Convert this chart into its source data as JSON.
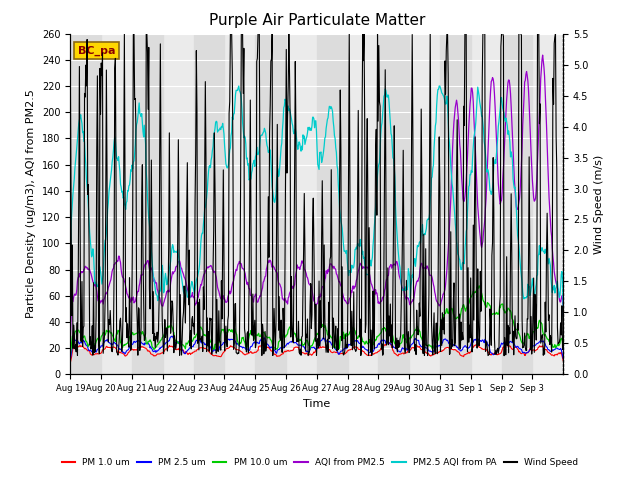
{
  "title": "Purple Air Particulate Matter",
  "xlabel": "Time",
  "ylabel_left": "Particle Density (ug/m3), AQI from PM2.5",
  "ylabel_right": "Wind Speed (m/s)",
  "annotation_text": "BC_pa",
  "annotation_color": "#8B0000",
  "annotation_bg": "#FFD700",
  "annotation_edge": "#8B6914",
  "ylim_left": [
    0,
    260
  ],
  "ylim_right": [
    0,
    5.5
  ],
  "yticks_left": [
    0,
    20,
    40,
    60,
    80,
    100,
    120,
    140,
    160,
    180,
    200,
    220,
    240,
    260
  ],
  "yticks_right": [
    0.0,
    0.5,
    1.0,
    1.5,
    2.0,
    2.5,
    3.0,
    3.5,
    4.0,
    4.5,
    5.0,
    5.5
  ],
  "xtick_labels": [
    "Aug 19",
    "Aug 20",
    "Aug 21",
    "Aug 22",
    "Aug 23",
    "Aug 24",
    "Aug 25",
    "Aug 26",
    "Aug 27",
    "Aug 28",
    "Aug 29",
    "Aug 30",
    "Aug 31",
    "Sep 1",
    "Sep 2",
    "Sep 3"
  ],
  "line_colors": {
    "pm10": "#FF0000",
    "pm25": "#0000FF",
    "pm100": "#00CC00",
    "aqi_pm25": "#9900CC",
    "aqi_pa": "#00CCCC",
    "wind": "#000000"
  },
  "legend_labels": [
    "PM 1.0 um",
    "PM 2.5 um",
    "PM 10.0 um",
    "AQI from PM2.5",
    "PM2.5 AQI from PA",
    "Wind Speed"
  ],
  "bg_band_light": "#EBEBEB",
  "bg_band_dark": "#DCDCDC",
  "grid_color": "#FFFFFF",
  "fig_bg": "#FFFFFF",
  "title_fontsize": 11,
  "label_fontsize": 8,
  "tick_fontsize": 7,
  "xtick_fontsize": 6
}
